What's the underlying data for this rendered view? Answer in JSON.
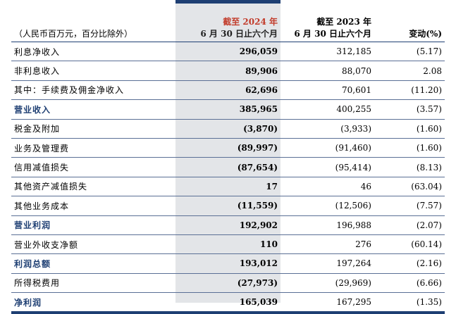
{
  "header": {
    "unit_note": "（人民币百万元，百分比除外）",
    "col_current_line1": "截至 2024 年",
    "col_current_line2": "6 月 30 日止六个月",
    "col_prior_line1": "截至 2023 年",
    "col_prior_line2": "6 月 30 日止六个月",
    "col_change": "变动(%)"
  },
  "rows": [
    {
      "label": "利息净收入",
      "current": "296,059",
      "prior": "312,185",
      "change": "(5.17)",
      "key": false
    },
    {
      "label": "非利息收入",
      "current": "89,906",
      "prior": "88,070",
      "change": "2.08",
      "key": false
    },
    {
      "label": "其中：手续费及佣金净收入",
      "current": "62,696",
      "prior": "70,601",
      "change": "(11.20)",
      "key": false
    },
    {
      "label": "营业收入",
      "current": "385,965",
      "prior": "400,255",
      "change": "(3.57)",
      "key": true
    },
    {
      "label": "税金及附加",
      "current": "(3,870)",
      "prior": "(3,933)",
      "change": "(1.60)",
      "key": false
    },
    {
      "label": "业务及管理费",
      "current": "(89,997)",
      "prior": "(91,460)",
      "change": "(1.60)",
      "key": false
    },
    {
      "label": "信用减值损失",
      "current": "(87,654)",
      "prior": "(95,414)",
      "change": "(8.13)",
      "key": false
    },
    {
      "label": "其他资产减值损失",
      "current": "17",
      "prior": "46",
      "change": "(63.04)",
      "key": false
    },
    {
      "label": "其他业务成本",
      "current": "(11,559)",
      "prior": "(12,506)",
      "change": "(7.57)",
      "key": false
    },
    {
      "label": "营业利润",
      "current": "192,902",
      "prior": "196,988",
      "change": "(2.07)",
      "key": true
    },
    {
      "label": "营业外收支净额",
      "current": "110",
      "prior": "276",
      "change": "(60.14)",
      "key": false
    },
    {
      "label": "利润总额",
      "current": "193,012",
      "prior": "197,264",
      "change": "(2.16)",
      "key": true
    },
    {
      "label": "所得税费用",
      "current": "(27,973)",
      "prior": "(29,969)",
      "change": "(6.66)",
      "key": false
    },
    {
      "label": "净利润",
      "current": "165,039",
      "prior": "167,295",
      "change": "(1.35)",
      "key": true
    }
  ],
  "colors": {
    "accent": "#1e3f73",
    "current_year": "#c23b2a",
    "highlight": "#e3e5e8"
  }
}
